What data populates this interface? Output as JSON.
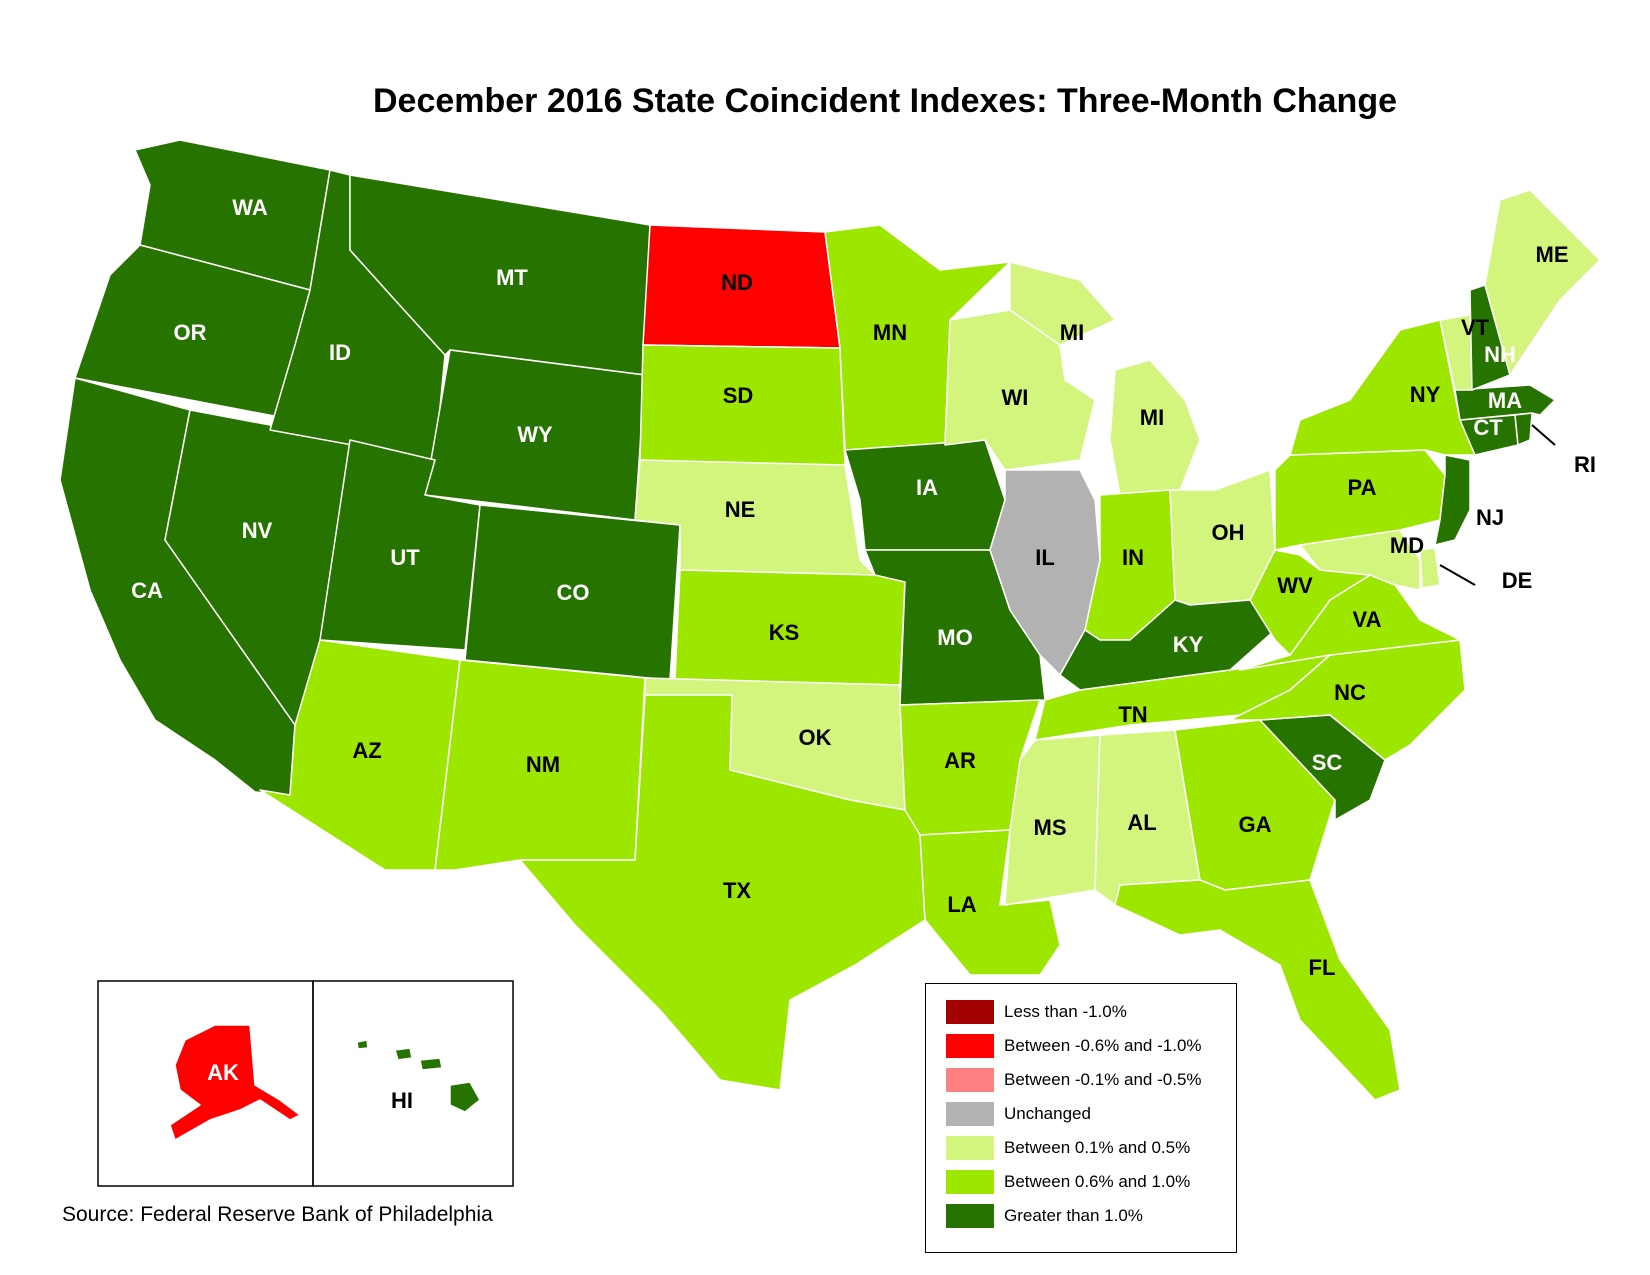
{
  "title": "December 2016 State Coincident Indexes: Three-Month Change",
  "source": "Source: Federal Reserve Bank of Philadelphia",
  "colors": {
    "less_than_neg1": "#a30000",
    "neg06_neg10": "#ff0000",
    "neg01_neg05": "#ff8080",
    "unchanged": "#b2b2b2",
    "pos01_pos05": "#d3f57e",
    "pos06_pos10": "#9de600",
    "greater_than_1": "#267300",
    "border": "#ffffff"
  },
  "legend": [
    {
      "label": "Less than -1.0%",
      "category": "less_than_neg1"
    },
    {
      "label": "Between -0.6% and -1.0%",
      "category": "neg06_neg10"
    },
    {
      "label": "Between -0.1% and -0.5%",
      "category": "neg01_neg05"
    },
    {
      "label": "Unchanged",
      "category": "unchanged"
    },
    {
      "label": "Between 0.1% and 0.5%",
      "category": "pos01_pos05"
    },
    {
      "label": "Between 0.6% and 1.0%",
      "category": "pos06_pos10"
    },
    {
      "label": "Greater than 1.0%",
      "category": "greater_than_1"
    }
  ],
  "states": [
    {
      "abbr": "WA",
      "category": "greater_than_1"
    },
    {
      "abbr": "OR",
      "category": "greater_than_1"
    },
    {
      "abbr": "CA",
      "category": "greater_than_1"
    },
    {
      "abbr": "NV",
      "category": "greater_than_1"
    },
    {
      "abbr": "ID",
      "category": "greater_than_1"
    },
    {
      "abbr": "MT",
      "category": "greater_than_1"
    },
    {
      "abbr": "WY",
      "category": "greater_than_1"
    },
    {
      "abbr": "UT",
      "category": "greater_than_1"
    },
    {
      "abbr": "CO",
      "category": "greater_than_1"
    },
    {
      "abbr": "AZ",
      "category": "pos06_pos10"
    },
    {
      "abbr": "NM",
      "category": "pos06_pos10"
    },
    {
      "abbr": "ND",
      "category": "neg06_neg10"
    },
    {
      "abbr": "SD",
      "category": "pos06_pos10"
    },
    {
      "abbr": "NE",
      "category": "pos01_pos05"
    },
    {
      "abbr": "KS",
      "category": "pos06_pos10"
    },
    {
      "abbr": "OK",
      "category": "pos01_pos05"
    },
    {
      "abbr": "TX",
      "category": "pos06_pos10"
    },
    {
      "abbr": "MN",
      "category": "pos06_pos10"
    },
    {
      "abbr": "IA",
      "category": "greater_than_1"
    },
    {
      "abbr": "MO",
      "category": "greater_than_1"
    },
    {
      "abbr": "AR",
      "category": "pos06_pos10"
    },
    {
      "abbr": "LA",
      "category": "pos06_pos10"
    },
    {
      "abbr": "WI",
      "category": "pos01_pos05"
    },
    {
      "abbr": "MI",
      "category": "pos01_pos05"
    },
    {
      "abbr": "IL",
      "category": "unchanged"
    },
    {
      "abbr": "IN",
      "category": "pos06_pos10"
    },
    {
      "abbr": "OH",
      "category": "pos01_pos05"
    },
    {
      "abbr": "KY",
      "category": "greater_than_1"
    },
    {
      "abbr": "TN",
      "category": "pos06_pos10"
    },
    {
      "abbr": "MS",
      "category": "pos01_pos05"
    },
    {
      "abbr": "AL",
      "category": "pos01_pos05"
    },
    {
      "abbr": "GA",
      "category": "pos06_pos10"
    },
    {
      "abbr": "FL",
      "category": "pos06_pos10"
    },
    {
      "abbr": "SC",
      "category": "greater_than_1"
    },
    {
      "abbr": "NC",
      "category": "pos06_pos10"
    },
    {
      "abbr": "VA",
      "category": "pos06_pos10"
    },
    {
      "abbr": "WV",
      "category": "pos06_pos10"
    },
    {
      "abbr": "MD",
      "category": "pos01_pos05"
    },
    {
      "abbr": "DE",
      "category": "pos01_pos05"
    },
    {
      "abbr": "PA",
      "category": "pos06_pos10"
    },
    {
      "abbr": "NJ",
      "category": "greater_than_1"
    },
    {
      "abbr": "NY",
      "category": "pos06_pos10"
    },
    {
      "abbr": "CT",
      "category": "greater_than_1"
    },
    {
      "abbr": "RI",
      "category": "greater_than_1"
    },
    {
      "abbr": "MA",
      "category": "greater_than_1"
    },
    {
      "abbr": "VT",
      "category": "pos01_pos05"
    },
    {
      "abbr": "NH",
      "category": "greater_than_1"
    },
    {
      "abbr": "ME",
      "category": "pos01_pos05"
    },
    {
      "abbr": "AK",
      "category": "neg06_neg10"
    },
    {
      "abbr": "HI",
      "category": "greater_than_1"
    }
  ]
}
